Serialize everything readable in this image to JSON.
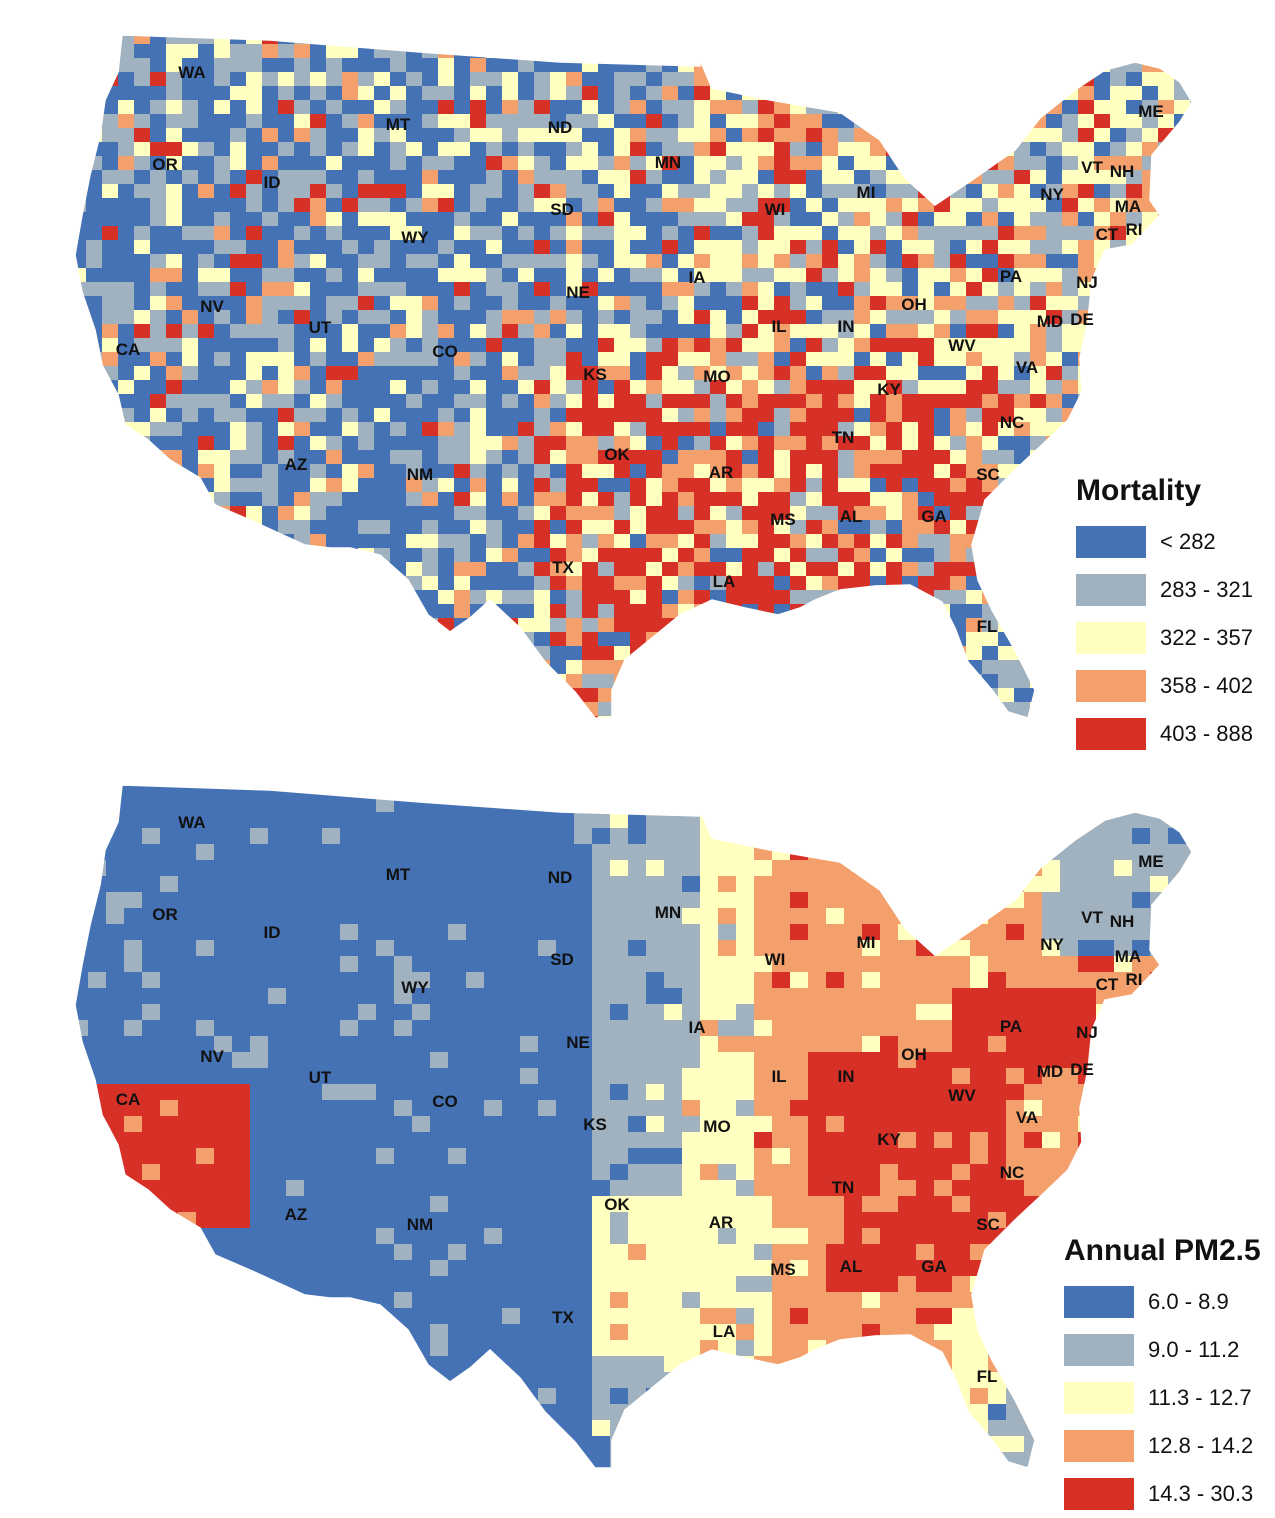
{
  "maps": [
    {
      "title": "Mortality",
      "legend": [
        {
          "label": "< 282",
          "color": "#4472b4"
        },
        {
          "label": "283 - 321",
          "color": "#a0b1bf"
        },
        {
          "label": "322 - 357",
          "color": "#ffffbf"
        },
        {
          "label": "358 - 402",
          "color": "#f4a06c"
        },
        {
          "label": "403 - 888",
          "color": "#d73027"
        }
      ],
      "state_labels": [
        "WA",
        "OR",
        "CA",
        "NV",
        "ID",
        "MT",
        "WY",
        "UT",
        "AZ",
        "NM",
        "CO",
        "ND",
        "SD",
        "NE",
        "KS",
        "OK",
        "TX",
        "MN",
        "IA",
        "MO",
        "AR",
        "LA",
        "WI",
        "IL",
        "MI",
        "IN",
        "OH",
        "KY",
        "TN",
        "MS",
        "AL",
        "GA",
        "FL",
        "SC",
        "NC",
        "VA",
        "WV",
        "PA",
        "NY",
        "VT",
        "NH",
        "ME",
        "MA",
        "CT",
        "RI",
        "NJ",
        "DE",
        "MD"
      ]
    },
    {
      "title": "Annual PM2.5",
      "legend": [
        {
          "label": "6.0 - 8.9",
          "color": "#4472b4"
        },
        {
          "label": "9.0 - 11.2",
          "color": "#a0b1bf"
        },
        {
          "label": "11.3 - 12.7",
          "color": "#ffffbf"
        },
        {
          "label": "12.8 - 14.2",
          "color": "#f4a06c"
        },
        {
          "label": "14.3 - 30.3",
          "color": "#d73027"
        }
      ],
      "state_labels": [
        "WA",
        "OR",
        "CA",
        "NV",
        "ID",
        "MT",
        "WY",
        "UT",
        "AZ",
        "NM",
        "CO",
        "ND",
        "SD",
        "NE",
        "KS",
        "OK",
        "TX",
        "MN",
        "IA",
        "MO",
        "AR",
        "LA",
        "WI",
        "IL",
        "MI",
        "IN",
        "OH",
        "KY",
        "TN",
        "MS",
        "AL",
        "GA",
        "FL",
        "SC",
        "NC",
        "VA",
        "WV",
        "PA",
        "NY",
        "VT",
        "NH",
        "ME",
        "MA",
        "CT",
        "RI",
        "NJ",
        "DE",
        "MD"
      ]
    }
  ]
}
